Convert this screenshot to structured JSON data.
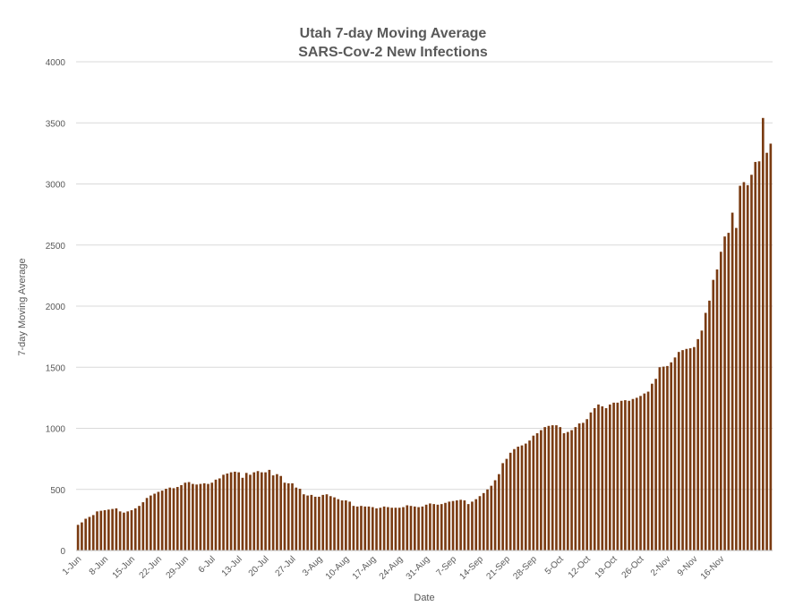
{
  "chart_data": {
    "type": "bar",
    "title": "Utah 7-day Moving Average",
    "subtitle": "SARS-Cov-2 New Infections",
    "xlabel": "Date",
    "ylabel": "7-day Moving Average",
    "ylim": [
      0,
      4000
    ],
    "yticks": [
      0,
      500,
      1000,
      1500,
      2000,
      2500,
      3000,
      3500,
      4000
    ],
    "grid": true,
    "legend": "none",
    "colors": {
      "bar": "#7a3b12",
      "grid": "#d9d9d9",
      "text": "#595959",
      "axis": "#bfbfbf"
    },
    "x_tick_labels": [
      "1-Jun",
      "8-Jun",
      "15-Jun",
      "22-Jun",
      "29-Jun",
      "6-Jul",
      "13-Jul",
      "20-Jul",
      "27-Jul",
      "3-Aug",
      "10-Aug",
      "17-Aug",
      "24-Aug",
      "31-Aug",
      "7-Sep",
      "14-Sep",
      "21-Sep",
      "28-Sep",
      "5-Oct",
      "12-Oct",
      "19-Oct",
      "26-Oct",
      "2-Nov",
      "9-Nov",
      "16-Nov"
    ],
    "start_date": "1-Jun",
    "values": [
      210,
      230,
      260,
      275,
      290,
      320,
      325,
      330,
      335,
      340,
      345,
      320,
      310,
      320,
      330,
      345,
      365,
      395,
      430,
      450,
      465,
      480,
      490,
      505,
      515,
      510,
      520,
      535,
      555,
      560,
      545,
      540,
      545,
      550,
      545,
      555,
      580,
      590,
      620,
      630,
      640,
      645,
      640,
      595,
      635,
      620,
      640,
      650,
      640,
      640,
      660,
      615,
      625,
      610,
      555,
      550,
      550,
      515,
      505,
      460,
      450,
      455,
      440,
      440,
      455,
      460,
      445,
      435,
      420,
      410,
      410,
      400,
      365,
      360,
      365,
      360,
      360,
      355,
      345,
      350,
      360,
      355,
      350,
      350,
      350,
      355,
      370,
      365,
      360,
      355,
      360,
      375,
      385,
      380,
      375,
      380,
      390,
      400,
      405,
      410,
      415,
      410,
      380,
      400,
      420,
      445,
      470,
      500,
      530,
      575,
      625,
      715,
      750,
      800,
      830,
      850,
      860,
      875,
      900,
      940,
      960,
      985,
      1010,
      1020,
      1025,
      1025,
      1010,
      960,
      970,
      985,
      1010,
      1040,
      1045,
      1075,
      1130,
      1165,
      1195,
      1180,
      1165,
      1195,
      1210,
      1210,
      1225,
      1230,
      1225,
      1240,
      1250,
      1265,
      1285,
      1300,
      1365,
      1405,
      1500,
      1505,
      1510,
      1540,
      1580,
      1625,
      1640,
      1650,
      1655,
      1665,
      1730,
      1800,
      1945,
      2045,
      2215,
      2300,
      2445,
      2570,
      2600,
      2765,
      2640,
      2985,
      3015,
      2990,
      3075,
      3180,
      3185,
      3540,
      3255,
      3330
    ]
  }
}
